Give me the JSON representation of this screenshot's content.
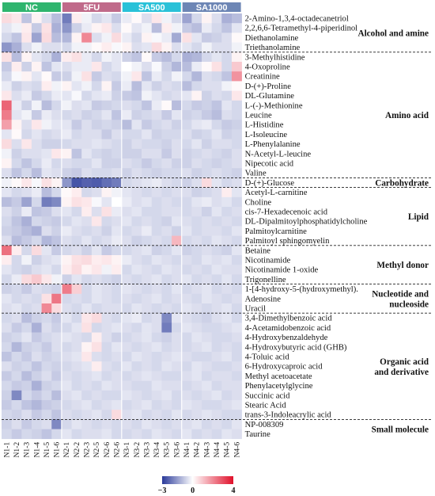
{
  "chart_data": {
    "type": "heatmap",
    "groups": [
      {
        "name": "NC",
        "color": "#2fb56e",
        "start": 0,
        "count": 6
      },
      {
        "name": "5FU",
        "color": "#c06a8a",
        "start": 6,
        "count": 6
      },
      {
        "name": "SA500",
        "color": "#29c1d8",
        "start": 12,
        "count": 6
      },
      {
        "name": "SA1000",
        "color": "#6d86b5",
        "start": 18,
        "count": 6
      }
    ],
    "samples": [
      "N1-1",
      "N1-2",
      "N1-3",
      "N1-4",
      "N1-5",
      "N1-6",
      "N2-1",
      "N2-2",
      "N2-3",
      "N2-5",
      "N2-6",
      "N2-6",
      "N3-1",
      "N3-2",
      "N3-3",
      "N3-4",
      "N3-5",
      "N3-6",
      "N4-1",
      "N4-2",
      "N4-3",
      "N4-4",
      "N4-5",
      "N4-6"
    ],
    "metabolites": [
      "2-Amino-1,3,4-octadecanetriol",
      "2,2,6,6-Tetramethyl-4-piperidinol",
      "Diethanolamine",
      "Triethanolamine",
      "3-Methylhistidine",
      "4-Oxoproline",
      "Creatinine",
      "D-(+)-Proline",
      "DL-Glutamine",
      "L-(-)-Methionine",
      "Leucine",
      "L-Histidine",
      "L-Isoleucine",
      "L-Phenylalanine",
      "N-Acetyl-L-leucine",
      "Nipecotic acid",
      "Valine",
      "D-(+)-Glucose",
      "Acetyl-L-carnitine",
      "Choline",
      "cis-7-Hexadecenoic acid",
      "DL-Dipalmitoylphosphatidylcholine",
      "Palmitoylcarnitine",
      "Palmitoyl sphingomyelin",
      "Betaine",
      "Nicotinamide",
      "Nicotinamide 1-oxide",
      "Trigonelline",
      "1-[4-hydroxy-5-(hydroxymethyl).",
      "Adenosine",
      "Uracil",
      "3,4-Dimethylbenzoic acid",
      "4-Acetamidobenzoic acid",
      "4-Hydroxybenzaldehyde",
      "4-Hydroxybutyric acid (GHB)",
      "4-Toluic acid",
      "6-Hydroxycaproic acid",
      "Methyl acetoacetate",
      "Phenylacetylglycine",
      "Succinic acid",
      "Stearic Acid",
      "trans-3-Indoleacrylic acid",
      "NP-008309",
      "Taurine"
    ],
    "categories": [
      {
        "name": "Alcohol and amine",
        "start": 0,
        "end": 3
      },
      {
        "name": "Amino acid",
        "start": 4,
        "end": 16
      },
      {
        "name": "Carbohydrate",
        "start": 17,
        "end": 17
      },
      {
        "name": "Lipid",
        "start": 18,
        "end": 23
      },
      {
        "name": "Methyl donor",
        "start": 24,
        "end": 27
      },
      {
        "name": "Nucleotide and nucleoside",
        "start": 28,
        "end": 30
      },
      {
        "name": "Organic acid and derivative",
        "start": 31,
        "end": 41
      },
      {
        "name": "Small molecule",
        "start": 42,
        "end": 43
      }
    ],
    "values": [
      [
        0.6,
        0.4,
        -0.9,
        0.2,
        -0.5,
        -1.0,
        -2.0,
        0.3,
        -0.2,
        -0.6,
        -0.4,
        -0.8,
        -0.3,
        0.1,
        -0.5,
        0.4,
        -0.2,
        -0.6,
        -1.4,
        -0.6,
        0.2,
        -0.5,
        -1.2,
        -1.0
      ],
      [
        -0.4,
        -0.2,
        0.3,
        -0.8,
        0.5,
        -1.2,
        -1.6,
        -0.7,
        -0.3,
        0.2,
        0.4,
        -0.5,
        0.1,
        -0.4,
        -0.2,
        -1.0,
        0.3,
        -0.2,
        -0.8,
        -1.0,
        -0.3,
        -0.6,
        -0.9,
        -0.4
      ],
      [
        -0.6,
        -0.9,
        0.4,
        -1.4,
        0.6,
        -1.0,
        -1.1,
        0.2,
        2.0,
        -0.5,
        -0.2,
        0.6,
        -0.3,
        -0.6,
        0.2,
        -0.1,
        -0.3,
        -1.3,
        0.5,
        -0.4,
        -0.8,
        -0.7,
        -0.5,
        0.1
      ],
      [
        -1.6,
        -1.2,
        -0.5,
        -0.2,
        -0.5,
        -0.5,
        -0.6,
        -0.2,
        -0.2,
        0.1,
        0.3,
        -0.1,
        0.2,
        -0.5,
        -0.4,
        0.6,
        0.2,
        -0.5,
        -0.4,
        -0.6,
        -0.2,
        -0.5,
        -0.5,
        -0.2
      ],
      [
        0.5,
        -1.0,
        0.2,
        -0.4,
        -0.6,
        -1.2,
        0.3,
        0.5,
        -0.3,
        -0.6,
        -0.2,
        -0.4,
        -0.7,
        -0.9,
        0.1,
        -0.8,
        -1.0,
        -0.6,
        -1.2,
        -1.1,
        -0.6,
        -0.4,
        -0.6,
        0.2
      ],
      [
        -0.8,
        0.3,
        -0.7,
        0.2,
        -0.9,
        -0.4,
        -0.5,
        -0.3,
        -0.3,
        0.4,
        -0.6,
        -0.4,
        0.0,
        -0.2,
        -0.5,
        -0.1,
        -0.7,
        -1.1,
        -1.0,
        -0.3,
        0.1,
        0.5,
        -0.6,
        0.9
      ],
      [
        -0.6,
        -0.1,
        0.2,
        -0.4,
        0.1,
        -0.8,
        -0.7,
        -0.2,
        0.5,
        -0.8,
        -0.5,
        -0.6,
        -0.2,
        0.4,
        -0.9,
        -0.3,
        -0.6,
        -0.2,
        -0.6,
        -1.1,
        -0.5,
        -0.6,
        -0.9,
        1.8
      ],
      [
        -0.3,
        -0.7,
        -0.5,
        -0.6,
        0.3,
        -0.2,
        0.2,
        -0.4,
        -0.2,
        -0.6,
        0.2,
        -0.8,
        -0.3,
        -1.0,
        -0.4,
        -0.7,
        -0.5,
        -0.6,
        -1.0,
        -0.6,
        -0.5,
        -0.5,
        -0.2,
        0.1
      ],
      [
        0.4,
        -0.5,
        -0.3,
        -0.8,
        -0.6,
        -0.3,
        -0.4,
        -0.1,
        -0.6,
        -0.4,
        -0.3,
        -0.7,
        -0.8,
        -0.9,
        -0.2,
        -0.4,
        -0.6,
        -0.5,
        -0.4,
        0.2,
        -0.7,
        -0.5,
        -0.6,
        0.4
      ],
      [
        2.6,
        -0.3,
        -0.7,
        -0.2,
        -1.0,
        -0.6,
        -0.2,
        -0.5,
        -0.4,
        -0.8,
        -0.7,
        -0.6,
        -0.5,
        -0.6,
        -0.9,
        -0.3,
        0.1,
        -1.0,
        -0.6,
        -0.8,
        -0.7,
        -0.9,
        -0.4,
        -0.6
      ],
      [
        2.2,
        -0.4,
        -0.2,
        -0.8,
        -0.3,
        -0.5,
        -0.6,
        -0.5,
        -0.7,
        -0.6,
        -0.4,
        -0.9,
        -0.3,
        -0.7,
        -0.6,
        -0.5,
        -0.8,
        -0.4,
        -0.7,
        -0.6,
        -0.8,
        -1.0,
        -0.5,
        -0.6
      ],
      [
        1.6,
        0.2,
        -0.5,
        0.4,
        -0.2,
        -0.4,
        -0.4,
        -0.8,
        -0.5,
        -0.7,
        -0.6,
        -0.7,
        -1.0,
        -0.4,
        -0.8,
        -0.6,
        -0.5,
        -0.7,
        -0.6,
        -0.4,
        -0.3,
        -0.6,
        -0.8,
        -0.7
      ],
      [
        -0.4,
        0.1,
        -0.6,
        -0.4,
        -0.6,
        -0.5,
        -0.3,
        -0.6,
        -0.5,
        -0.5,
        -0.8,
        -0.5,
        -0.6,
        -0.6,
        -0.4,
        -0.7,
        -0.6,
        -0.6,
        -0.5,
        -0.7,
        -0.6,
        -0.4,
        -0.7,
        -0.6
      ],
      [
        0.6,
        -0.5,
        0.4,
        -0.5,
        -0.7,
        -0.7,
        -0.6,
        -0.5,
        -0.5,
        -0.4,
        -0.5,
        -0.6,
        -0.7,
        -0.5,
        -0.6,
        -0.6,
        -0.7,
        -0.5,
        -0.6,
        -0.4,
        -0.7,
        -0.5,
        -0.5,
        -0.6
      ],
      [
        -0.2,
        -0.7,
        -0.5,
        -0.5,
        -0.4,
        0.4,
        0.2,
        -0.9,
        -0.4,
        -0.6,
        -0.7,
        -0.6,
        -0.7,
        -0.7,
        -0.5,
        -0.5,
        -0.8,
        -0.5,
        -0.7,
        -0.6,
        -0.5,
        -0.6,
        -0.7,
        -0.5
      ],
      [
        0.2,
        -0.6,
        -0.9,
        -0.6,
        -0.3,
        -0.6,
        -0.5,
        -0.6,
        -0.6,
        -0.4,
        -0.7,
        -0.7,
        -0.5,
        -0.6,
        -0.8,
        -0.6,
        -0.5,
        -0.7,
        -0.7,
        -0.5,
        -0.6,
        -0.7,
        -0.6,
        -0.5
      ],
      [
        -0.5,
        -0.9,
        -0.6,
        -1.0,
        -0.4,
        -0.5,
        -0.7,
        -0.8,
        -0.5,
        -0.6,
        -0.6,
        -0.5,
        -0.7,
        -0.5,
        -0.6,
        -0.7,
        -0.6,
        -0.6,
        -0.5,
        -0.7,
        -0.6,
        -0.5,
        -0.6,
        -0.7
      ],
      [
        -0.2,
        0.1,
        0.4,
        -0.1,
        0.5,
        0.2,
        -1.6,
        -2.6,
        -2.4,
        -2.5,
        -2.2,
        -2.0,
        -0.6,
        -0.5,
        -0.4,
        -0.3,
        -0.5,
        -0.6,
        -0.7,
        -0.5,
        0.6,
        -0.4,
        -0.6,
        -0.5
      ],
      [
        -0.4,
        -0.6,
        -0.5,
        -0.3,
        -1.0,
        -0.6,
        0.1,
        0.3,
        -0.6,
        -0.5,
        0.2,
        -0.2,
        -0.4,
        -0.5,
        -0.6,
        -0.5,
        -0.6,
        -0.5,
        -0.5,
        -0.7,
        -0.6,
        -0.5,
        0.3,
        -0.4
      ],
      [
        -1.0,
        -0.8,
        -1.4,
        -0.6,
        -2.0,
        -1.8,
        0.2,
        0.5,
        0.4,
        -0.1,
        -0.4,
        0.0,
        -0.3,
        -0.5,
        -0.4,
        -0.6,
        -0.5,
        -0.6,
        -0.6,
        -0.4,
        -0.3,
        -0.5,
        -0.4,
        -0.6
      ],
      [
        -0.5,
        -0.7,
        -0.3,
        -0.9,
        -0.8,
        -0.5,
        -0.4,
        -0.6,
        0.3,
        -0.5,
        0.5,
        -0.3,
        -0.5,
        -0.4,
        -0.6,
        -0.6,
        -0.5,
        -0.5,
        -0.6,
        -0.5,
        -0.7,
        -0.4,
        -0.6,
        -0.5
      ],
      [
        -0.6,
        -0.9,
        -1.2,
        -0.6,
        -0.7,
        -0.8,
        -0.6,
        -0.4,
        -0.5,
        0.4,
        -0.6,
        -0.5,
        -0.4,
        -0.6,
        -0.5,
        -0.6,
        -0.7,
        -0.4,
        -0.5,
        -0.6,
        -0.5,
        -0.6,
        -0.5,
        -0.6
      ],
      [
        -0.7,
        -0.8,
        -1.0,
        -1.2,
        -0.5,
        -0.7,
        -0.3,
        -0.5,
        -0.6,
        -0.5,
        -0.7,
        -0.4,
        -0.6,
        -0.5,
        -0.3,
        -0.6,
        -0.5,
        -0.7,
        -0.4,
        -0.6,
        -0.5,
        -0.5,
        -0.6,
        -0.4
      ],
      [
        -0.5,
        -1.0,
        -0.8,
        -0.6,
        -1.1,
        -0.9,
        -0.5,
        -0.6,
        -0.4,
        -0.6,
        -0.5,
        -0.3,
        -0.5,
        -0.7,
        -0.6,
        -0.5,
        -0.6,
        1.2,
        -0.6,
        -0.5,
        -0.6,
        -0.4,
        -0.5,
        -0.6
      ],
      [
        2.4,
        0.3,
        -0.6,
        0.6,
        -0.4,
        -0.8,
        -0.6,
        -0.5,
        -0.7,
        -0.4,
        -0.8,
        -0.6,
        -0.6,
        -0.5,
        -0.4,
        -0.7,
        -0.6,
        -0.4,
        -0.7,
        -0.6,
        -0.5,
        -0.6,
        -0.7,
        -0.4
      ],
      [
        0.3,
        -0.6,
        -0.2,
        -0.7,
        -0.5,
        -0.4,
        0.2,
        0.5,
        0.6,
        0.3,
        0.4,
        0.2,
        -0.3,
        -0.5,
        -0.6,
        -0.4,
        -0.5,
        -0.6,
        -0.5,
        -0.6,
        -0.4,
        -0.5,
        -0.4,
        -0.6
      ],
      [
        -0.4,
        -0.6,
        -0.7,
        -0.5,
        -0.4,
        -0.6,
        0.3,
        0.6,
        0.2,
        0.4,
        -0.2,
        0.3,
        -0.6,
        -0.4,
        -0.5,
        -0.6,
        -0.4,
        -0.5,
        -0.6,
        -0.5,
        -0.6,
        -0.4,
        -0.5,
        -0.5
      ],
      [
        -0.6,
        -0.3,
        0.6,
        0.9,
        0.4,
        -0.2,
        -0.7,
        -0.4,
        -0.6,
        -0.5,
        -0.6,
        -0.7,
        -0.5,
        -0.6,
        -0.5,
        -0.4,
        -0.6,
        -0.5,
        -0.4,
        -0.6,
        -0.5,
        -0.6,
        -0.4,
        -0.6
      ],
      [
        -0.7,
        -0.6,
        -0.8,
        -0.5,
        -0.6,
        -0.7,
        2.2,
        0.8,
        -0.6,
        -0.4,
        -0.5,
        -0.6,
        -0.4,
        -0.5,
        -0.6,
        -0.5,
        -0.6,
        -0.4,
        -0.6,
        -0.5,
        -0.4,
        -0.6,
        -0.5,
        -0.6
      ],
      [
        -0.4,
        -0.6,
        -0.5,
        -0.6,
        0.5,
        2.3,
        -0.6,
        -0.5,
        -0.6,
        -0.4,
        -0.5,
        -0.6,
        -0.5,
        -0.6,
        -0.5,
        -0.4,
        -0.6,
        -0.5,
        -0.5,
        -0.6,
        -0.4,
        -0.5,
        -0.6,
        -0.5
      ],
      [
        -0.5,
        -0.4,
        -0.6,
        -0.5,
        2.0,
        0.6,
        -0.5,
        -0.6,
        -0.4,
        -0.6,
        -0.5,
        -0.5,
        -0.6,
        -0.4,
        -0.5,
        -0.6,
        -0.5,
        -0.6,
        -0.4,
        -0.5,
        -0.6,
        -0.5,
        -0.4,
        -0.6
      ],
      [
        -0.6,
        -0.5,
        -1.0,
        -0.7,
        -0.6,
        -0.8,
        -0.4,
        -0.6,
        0.4,
        0.6,
        -0.5,
        -0.6,
        -0.4,
        -0.3,
        -0.6,
        -0.5,
        -1.8,
        -0.4,
        -0.5,
        -0.6,
        -0.7,
        -0.5,
        -0.4,
        -0.6
      ],
      [
        -0.5,
        -0.8,
        -0.6,
        -1.2,
        -0.5,
        -0.7,
        -0.6,
        -0.4,
        0.5,
        -0.6,
        -0.5,
        -0.4,
        -0.5,
        -0.6,
        -0.4,
        -0.5,
        -2.0,
        -0.6,
        -0.4,
        -0.5,
        -0.6,
        -0.6,
        -0.5,
        -0.4
      ],
      [
        -0.7,
        -0.6,
        -0.4,
        -0.8,
        -0.6,
        -0.5,
        -0.4,
        -0.5,
        -0.6,
        0.3,
        -0.5,
        -0.7,
        -0.6,
        -0.5,
        -0.4,
        -0.6,
        -0.7,
        -0.5,
        -0.6,
        -0.4,
        -0.5,
        -0.6,
        -0.6,
        -0.5
      ],
      [
        -0.6,
        -1.1,
        -0.7,
        -0.6,
        -0.8,
        -0.5,
        -0.6,
        -0.5,
        0.2,
        0.5,
        -0.6,
        -0.4,
        -0.5,
        -0.6,
        -0.5,
        -0.4,
        -0.6,
        -0.5,
        -0.6,
        -0.5,
        -0.4,
        -0.6,
        -0.5,
        -0.6
      ],
      [
        -0.9,
        -0.6,
        -0.8,
        -0.5,
        -0.7,
        -0.6,
        -0.5,
        -0.4,
        0.4,
        -0.5,
        -0.6,
        -0.5,
        -0.6,
        -0.4,
        -0.5,
        -0.6,
        -0.5,
        -0.4,
        -0.5,
        -0.6,
        -0.6,
        -0.5,
        -0.4,
        -0.6
      ],
      [
        -0.5,
        -0.7,
        -0.6,
        -0.9,
        -0.6,
        -0.7,
        -0.6,
        -0.5,
        -0.4,
        0.3,
        -0.5,
        -0.6,
        -0.4,
        -0.6,
        -0.5,
        -0.6,
        -0.4,
        -0.5,
        -0.6,
        -0.4,
        -0.5,
        -0.6,
        -0.6,
        -0.5
      ],
      [
        -0.8,
        -0.6,
        -1.0,
        -0.7,
        -0.5,
        -0.8,
        -0.5,
        -0.6,
        -0.5,
        -0.4,
        -0.6,
        -0.5,
        -0.6,
        -0.5,
        -0.4,
        -0.5,
        -0.6,
        -0.6,
        -0.5,
        -0.4,
        -0.6,
        -0.5,
        -0.5,
        -0.6
      ],
      [
        -0.6,
        -0.8,
        -0.7,
        -1.2,
        -0.7,
        -0.6,
        -0.4,
        -0.6,
        -0.5,
        -0.6,
        -0.4,
        -0.5,
        -0.5,
        -0.6,
        -0.6,
        -0.4,
        -0.5,
        -0.5,
        -0.6,
        -0.5,
        -0.4,
        -0.6,
        -0.5,
        -0.5
      ],
      [
        -0.7,
        -1.8,
        -0.6,
        -0.8,
        -0.6,
        -1.0,
        -0.5,
        -0.4,
        -0.6,
        -0.5,
        -0.6,
        -0.6,
        -0.4,
        -0.5,
        -0.6,
        -0.5,
        -0.4,
        -0.6,
        -0.5,
        -0.6,
        -0.5,
        -0.4,
        -0.6,
        -0.5
      ],
      [
        -0.8,
        -0.6,
        -0.9,
        -1.1,
        -0.8,
        -0.7,
        -0.6,
        -0.5,
        -0.4,
        -0.6,
        -0.5,
        -0.4,
        -0.6,
        -0.5,
        -0.4,
        -0.6,
        -0.5,
        -0.6,
        -0.4,
        -0.5,
        -0.6,
        -0.6,
        -0.5,
        -0.4
      ],
      [
        -0.6,
        -0.7,
        -0.5,
        -0.8,
        -0.6,
        -0.9,
        -0.5,
        -0.6,
        -0.5,
        -0.4,
        -0.6,
        0.6,
        -0.5,
        -0.4,
        -0.6,
        -0.5,
        -0.6,
        -0.4,
        -0.6,
        -0.5,
        -0.4,
        -0.5,
        -0.6,
        -0.6
      ],
      [
        -0.7,
        -0.5,
        -0.8,
        -0.6,
        -0.5,
        -1.8,
        -0.6,
        -0.4,
        -0.5,
        -0.6,
        -0.5,
        -0.6,
        -0.5,
        -0.6,
        -0.4,
        -0.5,
        -0.6,
        -0.5,
        -0.5,
        -0.4,
        -0.6,
        -0.5,
        -0.6,
        -0.4
      ],
      [
        -0.6,
        -0.8,
        -0.6,
        -0.7,
        -0.9,
        -0.6,
        -0.4,
        -0.6,
        -0.5,
        -0.5,
        -0.4,
        -0.6,
        -0.6,
        -0.5,
        -0.6,
        -0.4,
        -0.5,
        -0.6,
        -0.4,
        -0.6,
        -0.5,
        -0.6,
        -0.4,
        -0.5
      ]
    ],
    "scale": {
      "min": -3,
      "mid": 0,
      "max": 4,
      "ticks": [
        "−3",
        "0",
        "4"
      ],
      "colors": [
        "#2a3a9a",
        "#ffffff",
        "#e0102a"
      ]
    }
  }
}
